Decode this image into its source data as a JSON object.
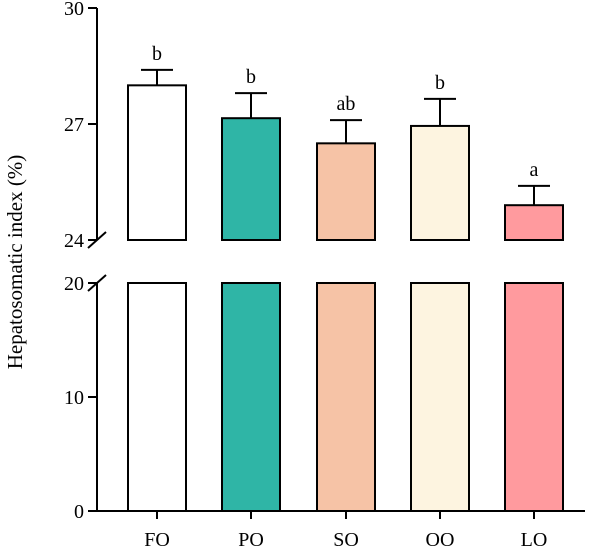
{
  "chart_data": {
    "type": "bar",
    "title": "",
    "xlabel": "",
    "ylabel": "Hepatosomatic index (%)",
    "categories": [
      "FO",
      "PO",
      "SO",
      "OO",
      "LO"
    ],
    "values": [
      28.0,
      27.15,
      26.5,
      26.95,
      24.9
    ],
    "errors": [
      0.4,
      0.65,
      0.6,
      0.7,
      0.5
    ],
    "significance": [
      "b",
      "b",
      "ab",
      "b",
      "a"
    ],
    "colors": [
      "#ffffff",
      "#2fb5a6",
      "#f6c3a6",
      "#fdf4e0",
      "#ff9a9e"
    ],
    "y_axis_broken": true,
    "ylim_lower": [
      0,
      20
    ],
    "ylim_upper": [
      24,
      30
    ],
    "yticks_lower": [
      "0",
      "10",
      "20"
    ],
    "yticks_upper": [
      "24",
      "27",
      "30"
    ],
    "grid": false,
    "legend": "none"
  }
}
